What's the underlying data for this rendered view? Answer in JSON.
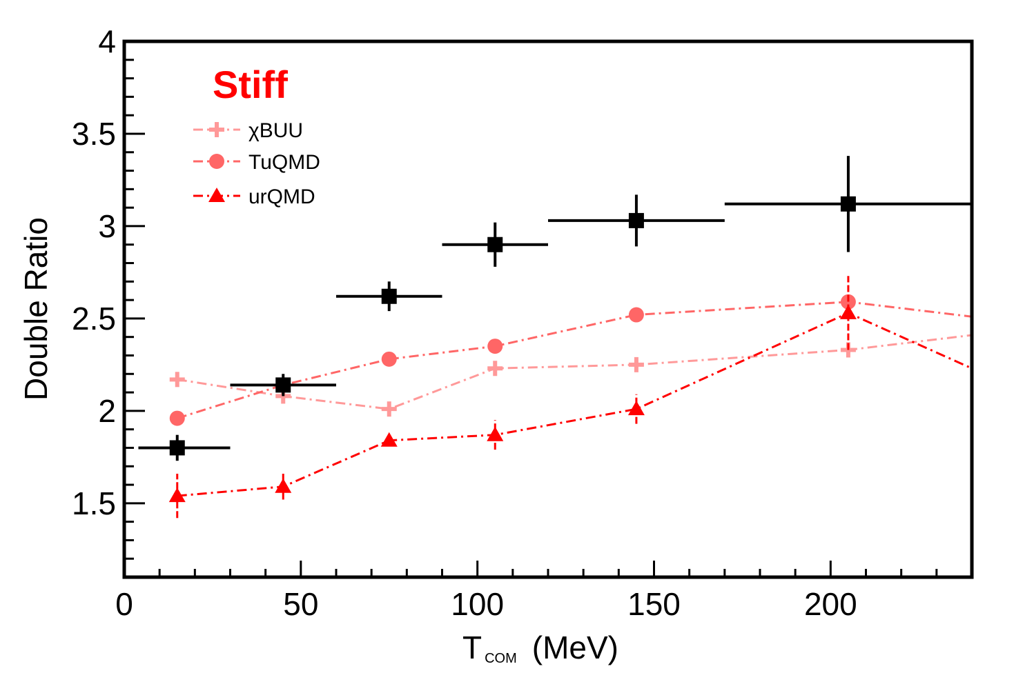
{
  "chart_data": {
    "type": "scatter",
    "title": "",
    "annotation": {
      "text": "Stiff",
      "color": "#ff0000"
    },
    "xlabel": {
      "main": "T",
      "sub": "COM",
      "unit": "(MeV)"
    },
    "ylabel": "Double Ratio",
    "xlim": [
      0,
      240
    ],
    "ylim": [
      1.1,
      4.0
    ],
    "x_ticks": [
      0,
      50,
      100,
      150,
      200
    ],
    "y_ticks": [
      1.5,
      2,
      2.5,
      3,
      3.5,
      4
    ],
    "grid": false,
    "legend_position": "top-left",
    "experiment": {
      "color": "#000000",
      "marker": "square",
      "points": [
        {
          "x": 15,
          "y": 1.8,
          "xlo": 4,
          "xhi": 30,
          "elo": 0.07,
          "ehi": 0.07
        },
        {
          "x": 45,
          "y": 2.14,
          "xlo": 30,
          "xhi": 60,
          "elo": 0.06,
          "ehi": 0.06
        },
        {
          "x": 75,
          "y": 2.62,
          "xlo": 60,
          "xhi": 90,
          "elo": 0.08,
          "ehi": 0.08
        },
        {
          "x": 105,
          "y": 2.9,
          "xlo": 90,
          "xhi": 120,
          "elo": 0.12,
          "ehi": 0.12
        },
        {
          "x": 145,
          "y": 3.03,
          "xlo": 120,
          "xhi": 170,
          "elo": 0.14,
          "ehi": 0.14
        },
        {
          "x": 205,
          "y": 3.12,
          "xlo": 170,
          "xhi": 240,
          "elo": 0.26,
          "ehi": 0.26
        }
      ]
    },
    "series": [
      {
        "name": "χBUU",
        "color": "#ff9999",
        "marker": "plus",
        "x": [
          15,
          45,
          75,
          105,
          145,
          205,
          240
        ],
        "y": [
          2.17,
          2.08,
          2.01,
          2.23,
          2.25,
          2.33,
          2.41
        ],
        "err": [
          0,
          0,
          0,
          0,
          0,
          0,
          0
        ]
      },
      {
        "name": "TuQMD",
        "color": "#ff6666",
        "marker": "circle",
        "x": [
          15,
          45,
          75,
          105,
          145,
          205,
          240
        ],
        "y": [
          1.96,
          2.14,
          2.28,
          2.35,
          2.52,
          2.59,
          2.51
        ],
        "err": [
          0,
          0,
          0,
          0,
          0,
          0,
          0
        ]
      },
      {
        "name": "urQMD",
        "color": "#ff0000",
        "marker": "triangle",
        "x": [
          15,
          45,
          75,
          105,
          145,
          205,
          240
        ],
        "y": [
          1.54,
          1.59,
          1.84,
          1.87,
          2.01,
          2.53,
          2.23
        ],
        "err": [
          0.12,
          0.07,
          0,
          0.08,
          0.08,
          0.2,
          0
        ]
      }
    ]
  }
}
